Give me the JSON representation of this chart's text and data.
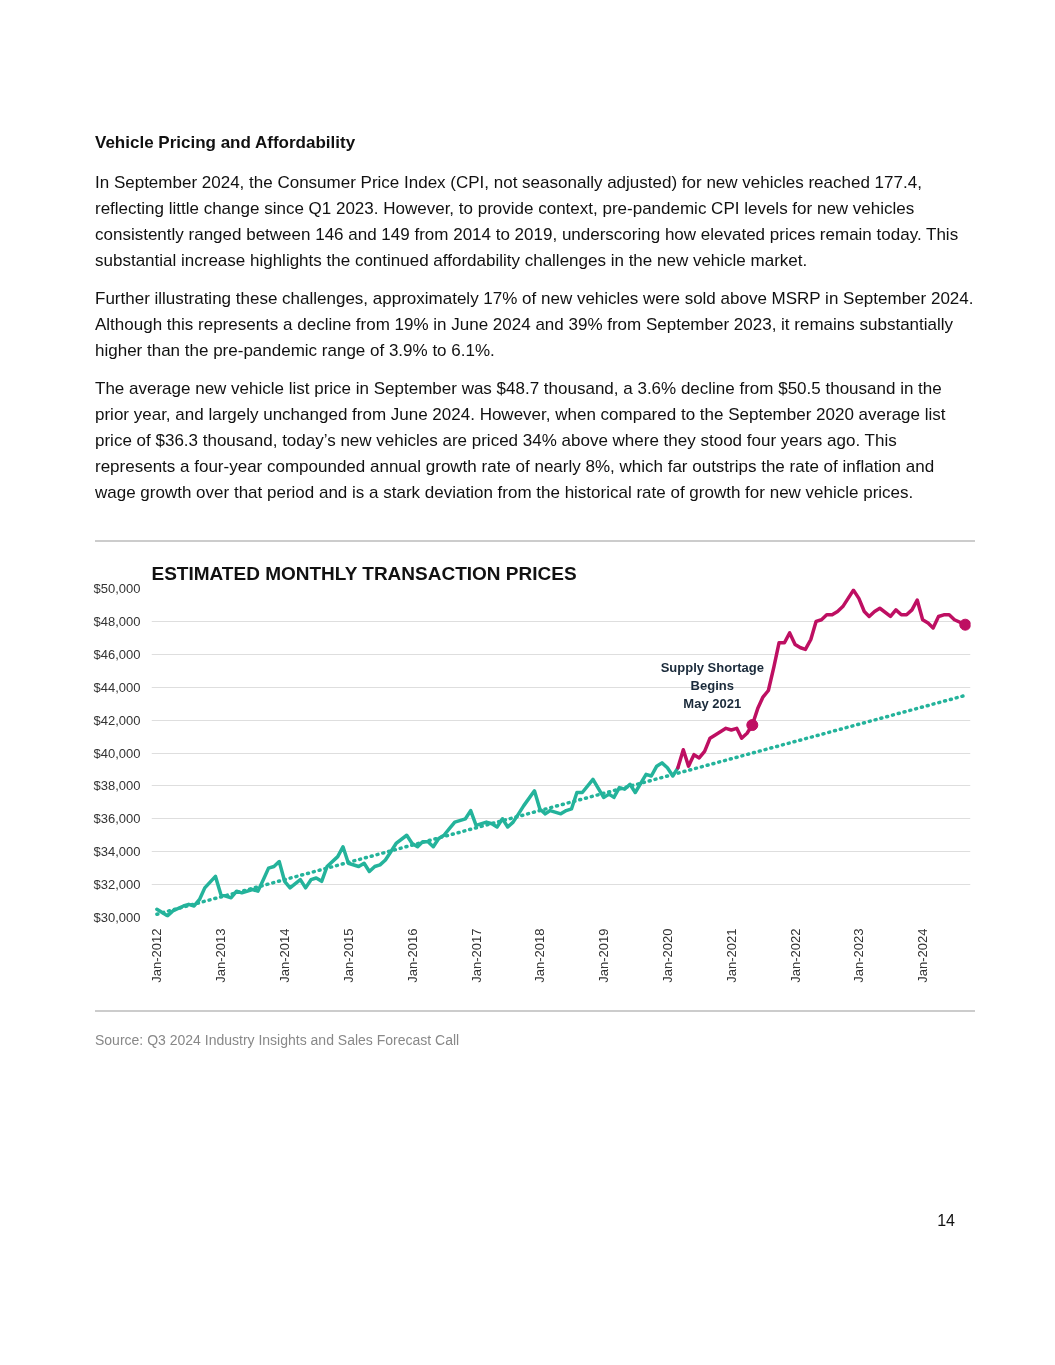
{
  "chart_data": {
    "type": "line",
    "title": "ESTIMATED MONTHLY TRANSACTION PRICES",
    "annotations": [
      "Vehicle Pricing and Affordability",
      "In September 2024, the Consumer Price Index (CPI, not seasonally adjusted) for new vehicles reached 177.4, reflecting little change since Q1 2023. However, to provide context, pre-pandemic CPI levels for new vehicles consistently ranged between 146 and 149 from 2014 to 2019, underscoring how elevated prices remain today. This substantial increase highlights the continued affordability challenges in the new vehicle market.",
      "Further illustrating these challenges, approximately 17% of new vehicles were sold above MSRP in September 2024. Although this represents a decline from 19% in June 2024 and 39% from September 2023, it remains substantially higher than the pre-pandemic range of 3.9% to 6.1%.",
      "The average new vehicle list price in September was $48.7 thousand, a 3.6% decline from $50.5 thousand in the prior year, and largely unchanged from June 2024. However, when compared to the September 2020 average list price of $36.3 thousand, today’s new vehicles are priced 34% above where they stood four years ago. This represents a four-year compounded annual growth rate of nearly 8%, which far outstrips the rate of inflation and wage growth over that period and is a stark deviation from the historical rate of growth for new vehicle prices.",
      {
        "text": "Supply Shortage\nBegins\nMay 2021",
        "x": "2021-05",
        "y": 41700
      },
      "Source: Q3 2024 Industry Insights and Sales Forecast Call",
      "14"
    ],
    "xlim": [
      "2011-12",
      "2024-10"
    ],
    "xticks": [
      {
        "value": "2012-01",
        "label": "Jan-2012"
      },
      {
        "value": "2013-01",
        "label": "Jan-2013"
      },
      {
        "value": "2014-01",
        "label": "Jan-2014"
      },
      {
        "value": "2015-01",
        "label": "Jan-2015"
      },
      {
        "value": "2016-01",
        "label": "Jan-2016"
      },
      {
        "value": "2017-01",
        "label": "Jan-2017"
      },
      {
        "value": "2018-01",
        "label": "Jan-2018"
      },
      {
        "value": "2019-01",
        "label": "Jan-2019"
      },
      {
        "value": "2020-01",
        "label": "Jan-2020"
      },
      {
        "value": "2021-01",
        "label": "Jan-2021"
      },
      {
        "value": "2022-01",
        "label": "Jan-2022"
      },
      {
        "value": "2023-01",
        "label": "Jan-2023"
      },
      {
        "value": "2024-01",
        "label": "Jan-2024"
      }
    ],
    "ylim": [
      30000,
      50000
    ],
    "yticks": [
      {
        "value": 30000,
        "label": "$30,000"
      },
      {
        "value": 32000,
        "label": "$32,000"
      },
      {
        "value": 34000,
        "label": "$34,000"
      },
      {
        "value": 36000,
        "label": "$36,000"
      },
      {
        "value": 38000,
        "label": "$38,000"
      },
      {
        "value": 40000,
        "label": "$40,000"
      },
      {
        "value": 42000,
        "label": "$42,000"
      },
      {
        "value": 44000,
        "label": "$44,000"
      },
      {
        "value": 46000,
        "label": "$46,000"
      },
      {
        "value": 48000,
        "label": "$48,000"
      },
      {
        "value": 50000,
        "label": "$50,000"
      }
    ],
    "grid": "y",
    "series": [
      {
        "color": "#24b39b",
        "x": [
          "2012-01",
          "2012-03",
          "2012-04",
          "2012-06",
          "2012-07",
          "2012-08",
          "2012-09",
          "2012-10",
          "2012-12",
          "2013-01",
          "2013-03",
          "2013-04",
          "2013-05",
          "2013-07",
          "2013-08",
          "2013-09",
          "2013-10",
          "2013-11",
          "2013-12",
          "2014-01",
          "2014-02",
          "2014-04",
          "2014-05",
          "2014-06",
          "2014-07",
          "2014-08",
          "2014-09",
          "2014-11",
          "2014-12",
          "2015-01",
          "2015-03",
          "2015-04",
          "2015-05",
          "2015-06",
          "2015-07",
          "2015-08",
          "2015-09",
          "2015-10",
          "2015-12",
          "2016-01",
          "2016-02",
          "2016-03",
          "2016-04",
          "2016-05",
          "2016-06",
          "2016-07",
          "2016-08",
          "2016-09",
          "2016-11",
          "2016-12",
          "2017-01",
          "2017-03",
          "2017-04",
          "2017-05",
          "2017-06",
          "2017-07",
          "2017-08",
          "2017-09",
          "2017-10",
          "2017-12",
          "2018-01",
          "2018-02",
          "2018-03",
          "2018-05",
          "2018-06",
          "2018-07",
          "2018-08",
          "2018-09",
          "2018-11",
          "2019-01",
          "2019-02",
          "2019-03",
          "2019-04",
          "2019-05",
          "2019-06",
          "2019-07",
          "2019-09",
          "2019-10",
          "2019-11",
          "2019-12",
          "2020-01",
          "2020-02",
          "2020-03"
        ],
        "values": [
          30500,
          30100,
          30400,
          30700,
          30800,
          30700,
          31100,
          31800,
          32500,
          31400,
          31200,
          31600,
          31500,
          31700,
          31600,
          32300,
          33000,
          33100,
          33400,
          32200,
          31800,
          32300,
          31800,
          32300,
          32400,
          32200,
          33100,
          33700,
          34300,
          33300,
          33100,
          33300,
          32800,
          33100,
          33200,
          33500,
          34000,
          34500,
          35000,
          34500,
          34300,
          34600,
          34600,
          34300,
          34800,
          35000,
          35400,
          35800,
          36000,
          36500,
          35600,
          35800,
          35700,
          35500,
          36000,
          35500,
          35800,
          36300,
          36800,
          37700,
          36600,
          36300,
          36500,
          36300,
          36500,
          36600,
          37600,
          37600,
          38400,
          37300,
          37500,
          37300,
          37900,
          37800,
          38100,
          37600,
          38700,
          38600,
          39200,
          39400,
          39100,
          38600,
          39100
        ]
      },
      {
        "color": "#be0f62",
        "x": [
          "2020-03",
          "2020-04",
          "2020-05",
          "2020-06",
          "2020-07",
          "2020-08",
          "2020-09",
          "2020-10",
          "2020-12",
          "2021-01",
          "2021-02",
          "2021-03",
          "2021-04",
          "2021-05",
          "2021-06",
          "2021-07",
          "2021-08",
          "2021-09",
          "2021-10",
          "2021-11",
          "2021-12",
          "2022-01",
          "2022-02",
          "2022-03",
          "2022-04",
          "2022-05",
          "2022-06",
          "2022-07",
          "2022-08",
          "2022-09",
          "2022-10",
          "2022-12",
          "2023-01",
          "2023-02",
          "2023-03",
          "2023-04",
          "2023-05",
          "2023-07",
          "2023-08",
          "2023-09",
          "2023-10",
          "2023-11",
          "2023-12",
          "2024-01",
          "2024-02",
          "2024-03",
          "2024-04",
          "2024-05",
          "2024-06",
          "2024-07",
          "2024-09"
        ],
        "values": [
          39100,
          40200,
          39200,
          39900,
          39700,
          40100,
          40900,
          41100,
          41500,
          41400,
          41500,
          40900,
          41200,
          41700,
          42700,
          43400,
          43800,
          45200,
          46700,
          46700,
          47300,
          46600,
          46400,
          46300,
          46900,
          48000,
          48100,
          48400,
          48400,
          48600,
          48900,
          49900,
          49400,
          48600,
          48300,
          48600,
          48800,
          48300,
          48700,
          48400,
          48400,
          48700,
          49300,
          48100,
          47900,
          47600,
          48300,
          48400,
          48400,
          48100,
          47800
        ]
      },
      {
        "color": "#24b39b",
        "line_style": "dotted",
        "x": [
          "2012-01",
          "2024-09"
        ],
        "values": [
          30200,
          43500
        ]
      },
      {
        "type": "scatter",
        "color": "#be0f62",
        "marker": "circle",
        "x": [
          "2021-05",
          "2024-09"
        ],
        "values": [
          41700,
          47800
        ]
      }
    ]
  }
}
